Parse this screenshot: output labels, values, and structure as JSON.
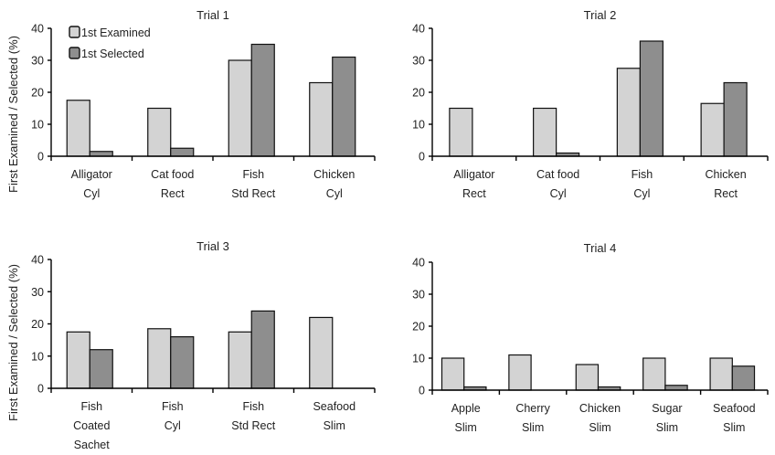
{
  "figure": {
    "ylabel": "First Examined / Selected (%)"
  },
  "legend": {
    "placement": "top-left of Trial 1 panel",
    "items": [
      {
        "label": "1st Examined",
        "color": "#d3d3d3"
      },
      {
        "label": "1st Selected",
        "color": "#8e8e8e"
      }
    ]
  },
  "chart_data": [
    {
      "type": "bar",
      "title": "Trial 1",
      "ylim": [
        0,
        40
      ],
      "yticks": [
        0,
        10,
        20,
        30,
        40
      ],
      "grid": false,
      "categories": [
        [
          "Alligator",
          "Cyl"
        ],
        [
          "Cat food",
          "Rect"
        ],
        [
          "Fish",
          "Std Rect"
        ],
        [
          "Chicken",
          "Cyl"
        ]
      ],
      "series": [
        {
          "name": "1st Examined",
          "values": [
            17.5,
            15,
            30,
            23
          ]
        },
        {
          "name": "1st Selected",
          "values": [
            1.5,
            2.5,
            35,
            31
          ]
        }
      ]
    },
    {
      "type": "bar",
      "title": "Trial 2",
      "ylim": [
        0,
        40
      ],
      "yticks": [
        0,
        10,
        20,
        30,
        40
      ],
      "grid": false,
      "categories": [
        [
          "Alligator",
          "Rect"
        ],
        [
          "Cat food",
          "Cyl"
        ],
        [
          "Fish",
          "Cyl"
        ],
        [
          "Chicken",
          "Rect"
        ]
      ],
      "series": [
        {
          "name": "1st Examined",
          "values": [
            15,
            15,
            27.5,
            16.5
          ]
        },
        {
          "name": "1st Selected",
          "values": [
            0,
            1,
            36,
            23
          ]
        }
      ]
    },
    {
      "type": "bar",
      "title": "Trial 3",
      "ylim": [
        0,
        40
      ],
      "yticks": [
        0,
        10,
        20,
        30,
        40
      ],
      "grid": false,
      "categories": [
        [
          "Fish",
          "Coated",
          "Sachet"
        ],
        [
          "Fish",
          "Cyl"
        ],
        [
          "Fish",
          "Std Rect"
        ],
        [
          "Seafood",
          "Slim"
        ]
      ],
      "series": [
        {
          "name": "1st Examined",
          "values": [
            17.5,
            18.5,
            17.5,
            22
          ]
        },
        {
          "name": "1st Selected",
          "values": [
            12,
            16,
            24,
            0
          ]
        }
      ]
    },
    {
      "type": "bar",
      "title": "Trial 4",
      "ylim": [
        0,
        40
      ],
      "yticks": [
        0,
        10,
        20,
        30,
        40
      ],
      "grid": false,
      "categories": [
        [
          "Apple",
          "Slim"
        ],
        [
          "Cherry",
          "Slim"
        ],
        [
          "Chicken",
          "Slim"
        ],
        [
          "Sugar",
          "Slim"
        ],
        [
          "Seafood",
          "Slim"
        ]
      ],
      "series": [
        {
          "name": "1st Examined",
          "values": [
            10,
            11,
            8,
            10,
            10
          ]
        },
        {
          "name": "1st Selected",
          "values": [
            1,
            0,
            1,
            1.5,
            7.5
          ]
        }
      ]
    }
  ]
}
